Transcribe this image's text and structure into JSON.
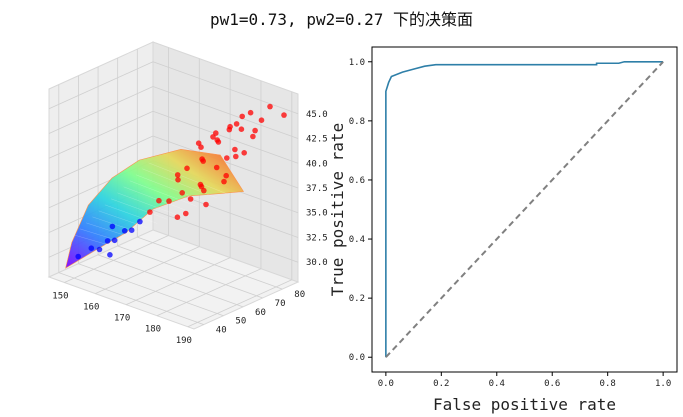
{
  "figure": {
    "title": "pw1=0.73, pw2=0.27 下的决策面"
  },
  "chart_data": [
    {
      "type": "scatter3d",
      "title": "",
      "surface": "decision-surface",
      "colormap": "rainbow",
      "x_ticks": [
        "150",
        "160",
        "170",
        "180",
        "190"
      ],
      "y_ticks": [
        "40",
        "50",
        "60",
        "70",
        "80"
      ],
      "z_ticks": [
        "30.0",
        "32.5",
        "35.0",
        "37.5",
        "40.0",
        "42.5",
        "45.0"
      ],
      "xlim": [
        145,
        192
      ],
      "ylim": [
        35,
        88
      ],
      "zlim": [
        28,
        47
      ],
      "series": [
        {
          "color": "#ff0000",
          "points": [
            [
              172,
              70,
              41
            ],
            [
              176,
              72,
              42
            ],
            [
              178,
              75,
              43
            ],
            [
              181,
              74,
              44
            ],
            [
              183,
              78,
              45
            ],
            [
              174,
              68,
              40
            ],
            [
              185,
              76,
              43
            ],
            [
              170,
              66,
              39
            ],
            [
              179,
              80,
              44
            ],
            [
              182,
              72,
              41
            ],
            [
              177,
              71,
              42
            ],
            [
              175,
              65,
              38
            ],
            [
              180,
              78,
              43
            ],
            [
              184,
              82,
              44
            ],
            [
              173,
              69,
              40
            ],
            [
              186,
              70,
              42
            ],
            [
              171,
              62,
              37
            ],
            [
              168,
              60,
              36
            ],
            [
              176,
              64,
              38
            ],
            [
              179,
              67,
              40
            ],
            [
              188,
              80,
              46
            ],
            [
              190,
              84,
              45
            ],
            [
              174,
              73,
              42
            ],
            [
              181,
              69,
              41
            ],
            [
              166,
              58,
              36
            ],
            [
              169,
              63,
              38
            ],
            [
              183,
              70,
              42
            ],
            [
              178,
              62,
              38
            ],
            [
              172,
              58,
              35
            ],
            [
              165,
              55,
              35
            ],
            [
              175,
              60,
              37
            ],
            [
              177,
              77,
              43
            ],
            [
              187,
              74,
              44
            ],
            [
              180,
              60,
              37
            ],
            [
              170,
              72,
              41
            ],
            [
              182,
              66,
              39
            ],
            [
              167,
              66,
              38
            ],
            [
              184,
              64,
              40
            ],
            [
              173,
              76,
              42
            ],
            [
              176,
              56,
              36
            ]
          ]
        },
        {
          "color": "#0000ff",
          "points": [
            [
              150,
              42,
              30
            ],
            [
              155,
              45,
              31
            ],
            [
              158,
              48,
              32
            ],
            [
              160,
              50,
              33
            ],
            [
              153,
              44,
              31
            ],
            [
              157,
              46,
              32
            ],
            [
              161,
              52,
              33
            ],
            [
              163,
              53,
              34
            ],
            [
              156,
              50,
              33
            ],
            [
              159,
              44,
              31
            ]
          ]
        }
      ]
    },
    {
      "type": "line",
      "title": "",
      "xlabel": "False positive rate",
      "ylabel": "True positive rate",
      "x_ticks": [
        "0.0",
        "0.2",
        "0.4",
        "0.6",
        "0.8",
        "1.0"
      ],
      "y_ticks": [
        "0.0",
        "0.2",
        "0.4",
        "0.6",
        "0.8",
        "1.0"
      ],
      "xlim": [
        -0.05,
        1.05
      ],
      "ylim": [
        -0.05,
        1.05
      ],
      "series": [
        {
          "color": "#2e7fa8",
          "style": "solid",
          "x": [
            0.0,
            0.0,
            0.01,
            0.02,
            0.06,
            0.1,
            0.14,
            0.18,
            0.3,
            0.5,
            0.76,
            0.76,
            0.84,
            0.86,
            0.98,
            1.0
          ],
          "y": [
            0.0,
            0.9,
            0.93,
            0.95,
            0.965,
            0.975,
            0.985,
            0.99,
            0.99,
            0.99,
            0.99,
            0.995,
            0.995,
            1.0,
            1.0,
            1.0
          ]
        },
        {
          "color": "#808080",
          "style": "dashed",
          "x": [
            0.0,
            1.0
          ],
          "y": [
            0.0,
            1.0
          ]
        }
      ]
    }
  ]
}
